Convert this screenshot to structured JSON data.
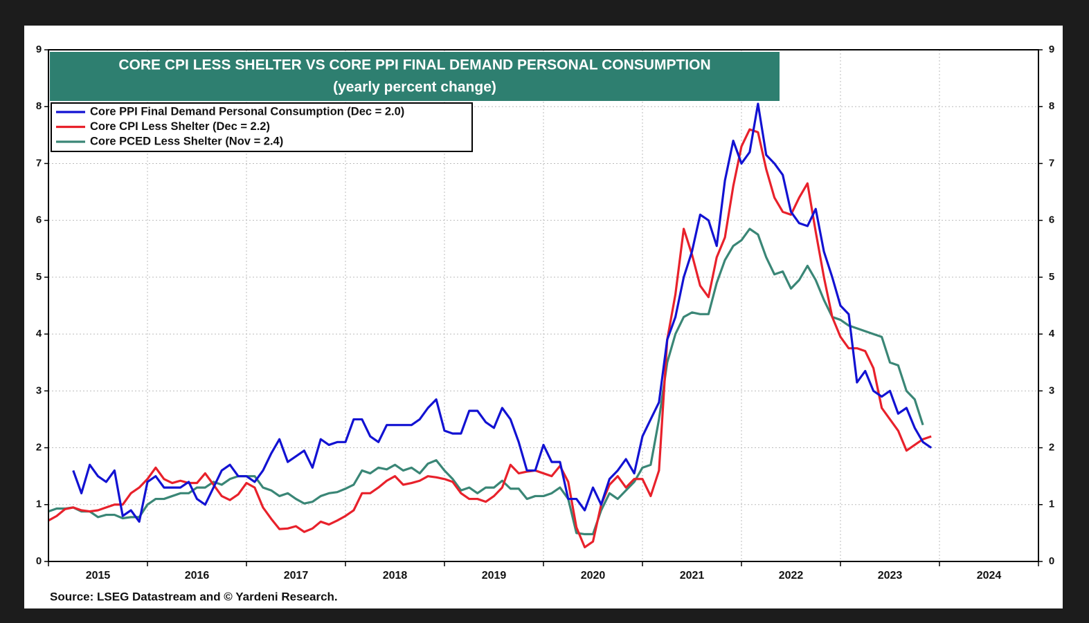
{
  "chart_data": {
    "type": "line",
    "title": "CORE CPI LESS SHELTER VS CORE PPI FINAL DEMAND PERSONAL CONSUMPTION",
    "subtitle": "(yearly percent change)",
    "source": "Source: LSEG Datastream and © Yardeni Research.",
    "xlim": [
      2015,
      2025
    ],
    "ylim": [
      0,
      9
    ],
    "yticks": [
      0,
      1,
      2,
      3,
      4,
      5,
      6,
      7,
      8,
      9
    ],
    "xgrid": [
      2015,
      2016,
      2017,
      2018,
      2019,
      2020,
      2021,
      2022,
      2023,
      2024,
      2025
    ],
    "xticks": [
      {
        "value": 2015.5,
        "label": "2015"
      },
      {
        "value": 2016.5,
        "label": "2016"
      },
      {
        "value": 2017.5,
        "label": "2017"
      },
      {
        "value": 2018.5,
        "label": "2018"
      },
      {
        "value": 2019.5,
        "label": "2019"
      },
      {
        "value": 2020.5,
        "label": "2020"
      },
      {
        "value": 2021.5,
        "label": "2021"
      },
      {
        "value": 2022.5,
        "label": "2022"
      },
      {
        "value": 2023.5,
        "label": "2023"
      },
      {
        "value": 2024.5,
        "label": "2024"
      }
    ],
    "grid": true,
    "legend": "upper left",
    "x": [
      2015,
      2015.083,
      2015.167,
      2015.25,
      2015.333,
      2015.417,
      2015.5,
      2015.583,
      2015.667,
      2015.75,
      2015.833,
      2015.917,
      2016,
      2016.083,
      2016.167,
      2016.25,
      2016.333,
      2016.417,
      2016.5,
      2016.583,
      2016.667,
      2016.75,
      2016.833,
      2016.917,
      2017,
      2017.083,
      2017.167,
      2017.25,
      2017.333,
      2017.417,
      2017.5,
      2017.583,
      2017.667,
      2017.75,
      2017.833,
      2017.917,
      2018,
      2018.083,
      2018.167,
      2018.25,
      2018.333,
      2018.417,
      2018.5,
      2018.583,
      2018.667,
      2018.75,
      2018.833,
      2018.917,
      2019,
      2019.083,
      2019.167,
      2019.25,
      2019.333,
      2019.417,
      2019.5,
      2019.583,
      2019.667,
      2019.75,
      2019.833,
      2019.917,
      2020,
      2020.083,
      2020.167,
      2020.25,
      2020.333,
      2020.417,
      2020.5,
      2020.583,
      2020.667,
      2020.75,
      2020.833,
      2020.917,
      2021,
      2021.083,
      2021.167,
      2021.25,
      2021.333,
      2021.417,
      2021.5,
      2021.583,
      2021.667,
      2021.75,
      2021.833,
      2021.917,
      2022,
      2022.083,
      2022.167,
      2022.25,
      2022.333,
      2022.417,
      2022.5,
      2022.583,
      2022.667,
      2022.75,
      2022.833,
      2022.917,
      2023,
      2023.083,
      2023.167,
      2023.25,
      2023.333,
      2023.417,
      2023.5,
      2023.583,
      2023.667,
      2023.75,
      2023.833,
      2023.917
    ],
    "series": [
      {
        "name": "Core PPI Final Demand Personal Consumption (Dec = 2.0)",
        "color": "#1212d2",
        "values": [
          null,
          null,
          null,
          1.6,
          1.2,
          1.7,
          1.5,
          1.4,
          1.6,
          0.8,
          0.9,
          0.7,
          1.4,
          1.5,
          1.3,
          1.3,
          1.3,
          1.4,
          1.1,
          1.0,
          1.3,
          1.6,
          1.7,
          1.5,
          1.5,
          1.4,
          1.6,
          1.9,
          2.15,
          1.75,
          1.85,
          1.95,
          1.65,
          2.15,
          2.05,
          2.1,
          2.1,
          2.5,
          2.5,
          2.2,
          2.1,
          2.4,
          2.4,
          2.4,
          2.4,
          2.5,
          2.7,
          2.85,
          2.3,
          2.25,
          2.25,
          2.65,
          2.65,
          2.45,
          2.35,
          2.7,
          2.5,
          2.1,
          1.6,
          1.6,
          2.05,
          1.75,
          1.75,
          1.1,
          1.1,
          0.9,
          1.3,
          1.0,
          1.45,
          1.6,
          1.8,
          1.55,
          2.2,
          2.5,
          2.8,
          3.9,
          4.3,
          5.0,
          5.45,
          6.1,
          6.0,
          5.55,
          6.7,
          7.4,
          7.0,
          7.2,
          8.05,
          7.15,
          7.0,
          6.8,
          6.15,
          5.95,
          5.9,
          6.2,
          5.45,
          5.0,
          4.5,
          4.35,
          3.15,
          3.35,
          3.0,
          2.9,
          3.0,
          2.6,
          2.7,
          2.35,
          2.1,
          2.0
        ]
      },
      {
        "name": "Core CPI Less Shelter (Dec = 2.2)",
        "color": "#e8212b",
        "values": [
          0.72,
          0.8,
          0.92,
          0.95,
          0.9,
          0.88,
          0.9,
          0.95,
          1.0,
          1.0,
          1.2,
          1.3,
          1.45,
          1.65,
          1.45,
          1.38,
          1.42,
          1.38,
          1.38,
          1.55,
          1.35,
          1.15,
          1.08,
          1.18,
          1.38,
          1.3,
          0.95,
          0.75,
          0.57,
          0.58,
          0.62,
          0.52,
          0.58,
          0.7,
          0.65,
          0.72,
          0.8,
          0.9,
          1.2,
          1.2,
          1.3,
          1.42,
          1.5,
          1.35,
          1.38,
          1.42,
          1.5,
          1.48,
          1.45,
          1.4,
          1.2,
          1.1,
          1.1,
          1.05,
          1.15,
          1.3,
          1.7,
          1.55,
          1.58,
          1.6,
          1.55,
          1.5,
          1.68,
          1.4,
          0.6,
          0.25,
          0.35,
          1.0,
          1.35,
          1.5,
          1.3,
          1.45,
          1.45,
          1.15,
          1.6,
          3.9,
          4.7,
          5.85,
          5.4,
          4.85,
          4.65,
          5.35,
          5.7,
          6.6,
          7.3,
          7.6,
          7.55,
          6.9,
          6.4,
          6.15,
          6.1,
          6.4,
          6.65,
          5.8,
          5.0,
          4.3,
          3.95,
          3.75,
          3.75,
          3.7,
          3.4,
          2.7,
          2.5,
          2.3,
          1.95,
          2.05,
          2.15,
          2.2
        ]
      },
      {
        "name": "Core PCED Less Shelter (Nov = 2.4)",
        "color": "#3a8676",
        "values": [
          0.88,
          0.93,
          0.93,
          0.95,
          0.88,
          0.88,
          0.78,
          0.82,
          0.82,
          0.76,
          0.78,
          0.78,
          1.0,
          1.1,
          1.1,
          1.15,
          1.2,
          1.2,
          1.3,
          1.3,
          1.4,
          1.35,
          1.45,
          1.5,
          1.5,
          1.5,
          1.3,
          1.25,
          1.15,
          1.2,
          1.1,
          1.02,
          1.05,
          1.15,
          1.2,
          1.22,
          1.28,
          1.35,
          1.6,
          1.55,
          1.65,
          1.62,
          1.7,
          1.6,
          1.65,
          1.55,
          1.72,
          1.78,
          1.6,
          1.45,
          1.25,
          1.3,
          1.2,
          1.3,
          1.3,
          1.42,
          1.28,
          1.28,
          1.1,
          1.15,
          1.15,
          1.2,
          1.3,
          1.1,
          0.5,
          0.48,
          0.48,
          0.9,
          1.2,
          1.1,
          1.25,
          1.4,
          1.65,
          1.7,
          2.5,
          3.5,
          4.0,
          4.3,
          4.38,
          4.35,
          4.35,
          4.9,
          5.3,
          5.55,
          5.65,
          5.85,
          5.75,
          5.35,
          5.05,
          5.1,
          4.8,
          4.95,
          5.2,
          4.95,
          4.6,
          4.3,
          4.25,
          4.15,
          4.1,
          4.05,
          4.0,
          3.95,
          3.5,
          3.45,
          3.0,
          2.85,
          2.4,
          null
        ]
      }
    ]
  }
}
